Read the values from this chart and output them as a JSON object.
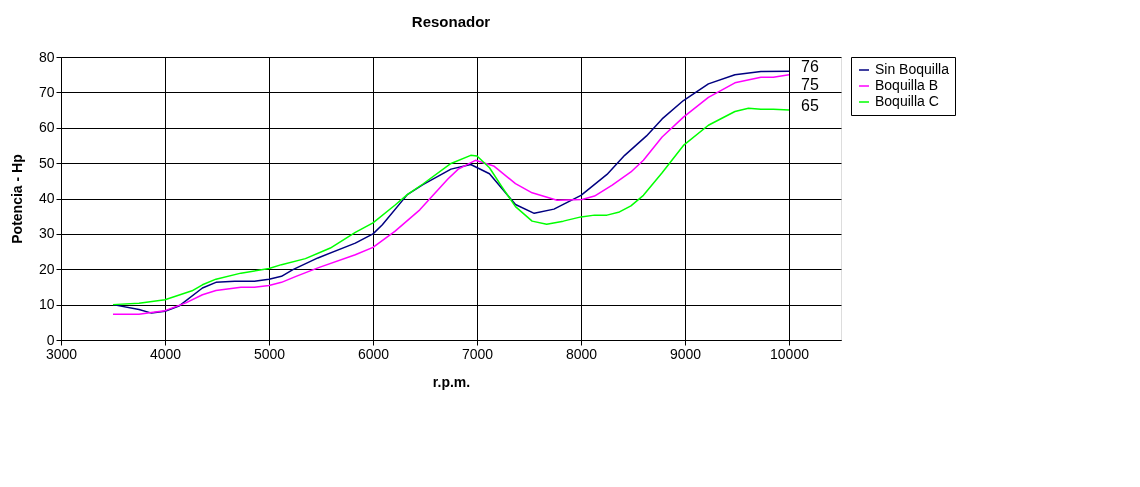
{
  "chart_data": {
    "type": "line",
    "title": "Resonador",
    "xlabel": "r.p.m.",
    "ylabel": "Potencia - Hp",
    "xlim": [
      3000,
      10500
    ],
    "xticks": [
      3000,
      4000,
      5000,
      6000,
      7000,
      8000,
      9000,
      10000
    ],
    "ylim": [
      0,
      80
    ],
    "yticks": [
      0,
      10,
      20,
      30,
      40,
      50,
      60,
      70,
      80
    ],
    "grid": true,
    "legend": "right",
    "series": [
      {
        "name": "Sin Boquilla",
        "color": "#000080",
        "x": [
          3500,
          3750,
          3870,
          4000,
          4140,
          4360,
          4490,
          4670,
          4860,
          5000,
          5120,
          5230,
          5470,
          5830,
          6000,
          6090,
          6330,
          6480,
          6750,
          6940,
          7120,
          7240,
          7370,
          7550,
          7740,
          8000,
          8250,
          8420,
          8630,
          8780,
          8985,
          9225,
          9480,
          9730,
          10000
        ],
        "values": [
          10,
          8.6,
          7.6,
          8.1,
          9.7,
          14.7,
          16.3,
          16.6,
          16.6,
          17.2,
          18,
          19.9,
          23.2,
          27.4,
          30,
          32.6,
          41.1,
          43.9,
          48.3,
          49.6,
          47,
          42.8,
          38.3,
          35.8,
          37,
          40.9,
          46.8,
          52.2,
          57.7,
          62.5,
          67.7,
          72.4,
          75,
          75.9,
          76
        ],
        "value_labels": [
          null,
          null,
          null,
          null,
          null,
          null,
          null,
          null,
          null,
          null,
          null,
          null,
          null,
          null,
          null,
          null,
          null,
          null,
          null,
          null,
          null,
          null,
          null,
          null,
          null,
          null,
          null,
          null,
          null,
          null,
          null,
          null,
          null,
          null,
          "76"
        ]
      },
      {
        "name": "Boquilla B",
        "color": "#ff00ff",
        "x": [
          3500,
          3750,
          3870,
          4000,
          4200,
          4360,
          4490,
          4730,
          4860,
          5000,
          5120,
          5260,
          5470,
          5830,
          6000,
          6210,
          6450,
          6720,
          6820,
          6985,
          7160,
          7370,
          7530,
          7770,
          8010,
          8130,
          8300,
          8480,
          8600,
          8780,
          8985,
          9225,
          9480,
          9730,
          9850,
          10000
        ],
        "values": [
          7.3,
          7.3,
          7.8,
          8.3,
          10.5,
          12.8,
          14,
          14.9,
          14.9,
          15.4,
          16.3,
          18,
          20.4,
          24.1,
          26.2,
          30.7,
          36.8,
          45.5,
          48.3,
          50.8,
          49.2,
          44.2,
          41.6,
          39.5,
          39.7,
          40.7,
          43.8,
          47.5,
          50.8,
          57.4,
          63,
          68.6,
          72.7,
          74.3,
          74.3,
          75
        ],
        "value_labels": [
          null,
          null,
          null,
          null,
          null,
          null,
          null,
          null,
          null,
          null,
          null,
          null,
          null,
          null,
          null,
          null,
          null,
          null,
          null,
          null,
          null,
          null,
          null,
          null,
          null,
          null,
          null,
          null,
          null,
          null,
          null,
          null,
          null,
          null,
          null,
          "75"
        ]
      },
      {
        "name": "Boquilla C",
        "color": "#00ff00",
        "x": [
          3500,
          3750,
          4000,
          4260,
          4360,
          4490,
          4730,
          5000,
          5120,
          5350,
          5590,
          5830,
          6000,
          6210,
          6330,
          6480,
          6750,
          6940,
          7000,
          7120,
          7240,
          7370,
          7530,
          7670,
          7830,
          8000,
          8130,
          8250,
          8370,
          8480,
          8600,
          8780,
          8985,
          9225,
          9480,
          9610,
          9730,
          9850,
          10000
        ],
        "values": [
          10,
          10.4,
          11.4,
          13.9,
          15.6,
          17.2,
          18.9,
          20.2,
          21.3,
          23,
          26,
          30.4,
          33.1,
          38.1,
          41.1,
          44.1,
          49.9,
          52.2,
          52,
          48.7,
          43.3,
          37.7,
          33.6,
          32.7,
          33.6,
          34.8,
          35.3,
          35.3,
          36.2,
          37.9,
          40.9,
          47.3,
          55,
          60.7,
          64.6,
          65.5,
          65.2,
          65.2,
          65
        ],
        "value_labels": [
          null,
          null,
          null,
          null,
          null,
          null,
          null,
          null,
          null,
          null,
          null,
          null,
          null,
          null,
          null,
          null,
          null,
          null,
          null,
          null,
          null,
          null,
          null,
          null,
          null,
          null,
          null,
          null,
          null,
          null,
          null,
          null,
          null,
          null,
          null,
          null,
          null,
          null,
          "65"
        ]
      }
    ]
  }
}
